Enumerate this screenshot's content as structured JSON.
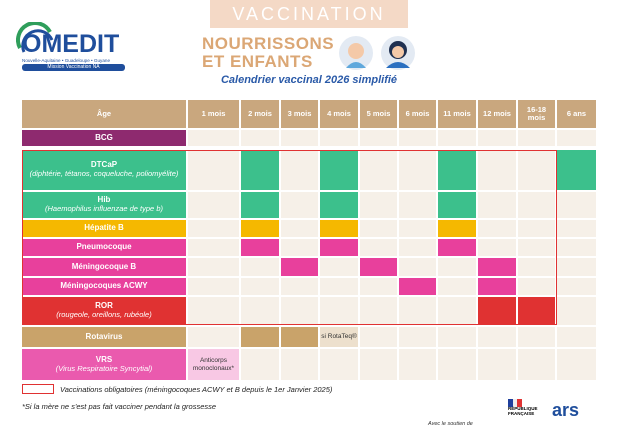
{
  "header": {
    "banner": "VACCINATION",
    "logo": {
      "name": "OMEDIT",
      "regions": "Nouvelle-Aquitaine • Guadeloupe • Guyane",
      "mission": "Mission Vaccination NA"
    },
    "title_line1": "NOURRISSONS",
    "title_line2": "ET ENFANTS",
    "subtitle": "Calendrier vaccinal 2026 simplifié"
  },
  "table": {
    "age_header": "Âge",
    "columns": [
      "1 mois",
      "2 mois",
      "3 mois",
      "4 mois",
      "5 mois",
      "6 mois",
      "11 mois",
      "12 mois",
      "16-18 mois",
      "6 ans"
    ],
    "rows": [
      {
        "name": "BCG",
        "color": "#8e2a6f",
        "cells": [
          false,
          false,
          false,
          false,
          false,
          false,
          false,
          false,
          false,
          false
        ]
      },
      {
        "name": "DTCaP",
        "detail": "(diphtérie, tétanos, coqueluche, poliomyélite)",
        "color": "#3cc08c",
        "cells": [
          false,
          true,
          false,
          true,
          false,
          false,
          true,
          false,
          false,
          true
        ]
      },
      {
        "name": "Hib",
        "detail": "(Haemophilus influenzae de type b)",
        "color": "#3cc08c",
        "cells": [
          false,
          true,
          false,
          true,
          false,
          false,
          true,
          false,
          false,
          false
        ]
      },
      {
        "name": "Hépatite B",
        "color": "#f5b800",
        "cells": [
          false,
          true,
          false,
          true,
          false,
          false,
          true,
          false,
          false,
          false
        ]
      },
      {
        "name": "Pneumocoque",
        "color": "#e8409c",
        "cells": [
          false,
          true,
          false,
          true,
          false,
          false,
          true,
          false,
          false,
          false
        ]
      },
      {
        "name": "Méningocoque B",
        "color": "#e8409c",
        "cells": [
          false,
          false,
          true,
          false,
          true,
          false,
          false,
          true,
          false,
          false
        ]
      },
      {
        "name": "Méningocoques ACWY",
        "color": "#e8409c",
        "cells": [
          false,
          false,
          false,
          false,
          false,
          true,
          false,
          true,
          false,
          false
        ]
      },
      {
        "name": "ROR",
        "detail": "(rougeole, oreillons, rubéole)",
        "color": "#e03232",
        "cells": [
          false,
          false,
          false,
          false,
          false,
          false,
          false,
          true,
          true,
          false
        ]
      },
      {
        "name": "Rotavirus",
        "color": "#c9a36a",
        "cells": [
          false,
          true,
          true,
          "si RotaTeq®",
          false,
          false,
          false,
          false,
          false,
          false
        ]
      },
      {
        "name": "VRS",
        "detail": "(Virus Respiratoire Syncytial)",
        "color": "#ea5aae",
        "cells": [
          "Anticorps monoclonaux*",
          false,
          false,
          false,
          false,
          false,
          false,
          false,
          false,
          false
        ]
      }
    ]
  },
  "legend": "Vaccinations obligatoires (méningocoques ACWY et B depuis le 1er Janvier 2025)",
  "footnote": "*Si la mère ne s'est pas fait vacciner pendant la grossesse",
  "footer": {
    "support": "Avec le soutien de",
    "partner1": "RÉPUBLIQUE FRANÇAISE",
    "partner2": "ars"
  }
}
